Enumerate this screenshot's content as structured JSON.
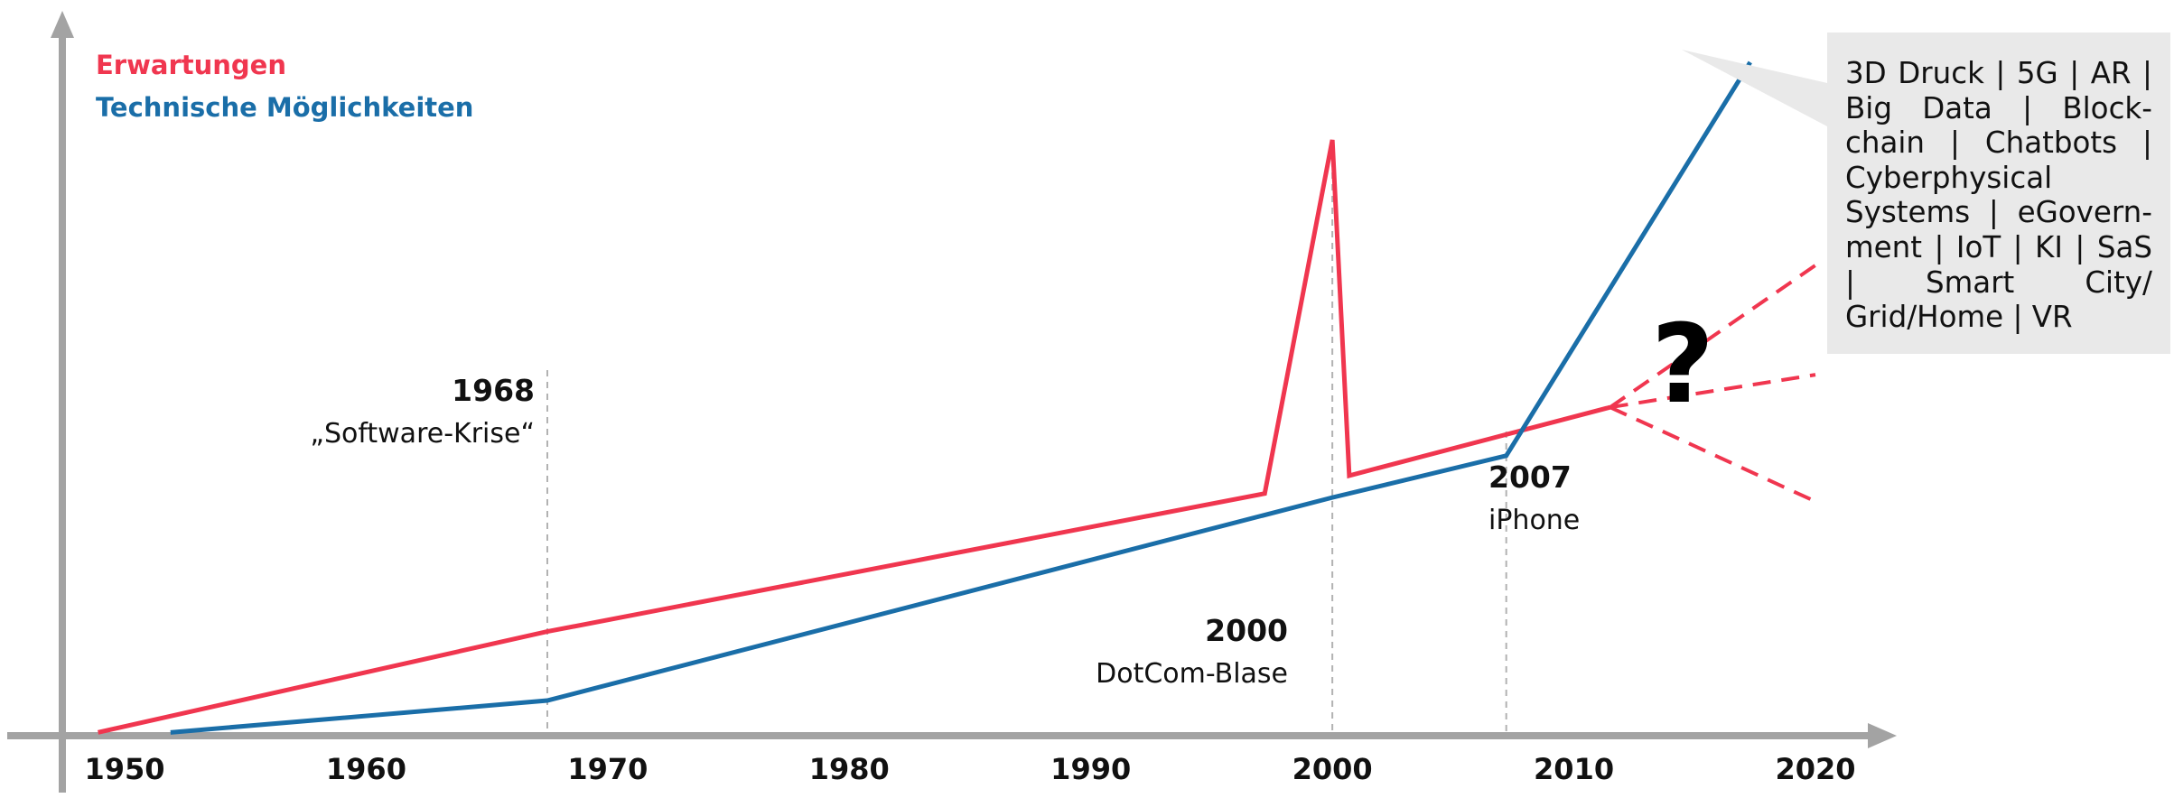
{
  "chart_data": {
    "type": "line",
    "title": "",
    "xlabel": "",
    "ylabel": "",
    "x_ticks": [
      "1950",
      "1960",
      "1970",
      "1980",
      "1990",
      "2000",
      "2010",
      "2020"
    ],
    "xlim": [
      1947.5,
      2025
    ],
    "ylim": [
      0,
      100
    ],
    "grid": false,
    "legend": "top-left",
    "series": [
      {
        "name": "Erwartungen",
        "color": "#f0364f",
        "x": [
          1948.9,
          1967.5,
          1997.2,
          2000.0,
          2000.7,
          2011.5
        ],
        "y": [
          0.5,
          15.7,
          36.5,
          89.8,
          39.2,
          49.5
        ]
      },
      {
        "name": "Technische Möglichkeiten",
        "color": "#1a6ea8",
        "x": [
          1951.9,
          1967.5,
          2000.0,
          2007.2,
          2017.3
        ],
        "y": [
          0.5,
          5.3,
          35.9,
          42.2,
          101.5
        ]
      }
    ],
    "projections": [
      {
        "x": [
          2011.5,
          2020.0
        ],
        "y": [
          49.5,
          70.9
        ]
      },
      {
        "x": [
          2011.5,
          2020.0
        ],
        "y": [
          49.5,
          54.4
        ]
      },
      {
        "x": [
          2011.5,
          2020.0
        ],
        "y": [
          49.5,
          35.3
        ]
      }
    ],
    "events": [
      {
        "x": 1967.5,
        "year": "1968",
        "label": "„Software-Krise“"
      },
      {
        "x": 2000.0,
        "year": "2000",
        "label": "DotCom-Blase"
      },
      {
        "x": 2007.2,
        "year": "2007",
        "label": "iPhone"
      }
    ],
    "question_mark": "?",
    "info_box": "3D Druck | 5G | AR | Big Data | Block­chain | Chatbots | Cyberphysical Systems | eGovern­ment | IoT | KI | SaS | Smart City/ Grid/Home | VR"
  }
}
